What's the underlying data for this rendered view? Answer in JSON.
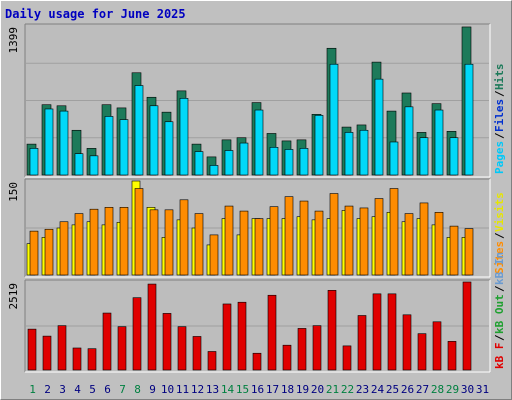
{
  "title": "Daily usage for June 2025",
  "colors": {
    "background": "#c0c0c0",
    "panel": "#bdbdbd",
    "hits": "#1d7a5a",
    "files": "#00d8f8",
    "pages": "#0030d0",
    "visits": "#ffff00",
    "sites": "#ff8c00",
    "kb_in": "#6b9bd0",
    "kb_out": "#1fa030",
    "kb_f": "#e00000",
    "weekend_label": "#008040",
    "weekday_label": "#000080"
  },
  "chart_data": [
    {
      "type": "bar",
      "panel": "hits-files-pages",
      "ytick_label": "1399",
      "ylim": [
        0,
        1399
      ],
      "legend": [
        {
          "label": "Pages",
          "color": "#00c8f8"
        },
        {
          "label": "/",
          "color": "#000000"
        },
        {
          "label": "Files",
          "color": "#0030d0"
        },
        {
          "label": "/",
          "color": "#000000"
        },
        {
          "label": "Hits",
          "color": "#1d7a5a"
        }
      ],
      "categories": [
        "1",
        "2",
        "3",
        "4",
        "5",
        "6",
        "7",
        "8",
        "9",
        "10",
        "11",
        "12",
        "13",
        "14",
        "15",
        "16",
        "17",
        "18",
        "19",
        "20",
        "21",
        "22",
        "23",
        "24",
        "25",
        "26",
        "27",
        "28",
        "29",
        "30",
        "31"
      ],
      "series": [
        {
          "name": "Hits",
          "values": [
            290,
            660,
            650,
            420,
            250,
            660,
            630,
            960,
            730,
            590,
            790,
            290,
            170,
            330,
            350,
            680,
            390,
            320,
            330,
            570,
            1190,
            450,
            470,
            1060,
            600,
            770,
            400,
            670,
            410,
            1390,
            null
          ]
        },
        {
          "name": "Files",
          "values": [
            250,
            620,
            600,
            200,
            180,
            550,
            520,
            840,
            650,
            500,
            720,
            220,
            90,
            230,
            300,
            610,
            260,
            240,
            250,
            560,
            1040,
            400,
            420,
            900,
            310,
            640,
            350,
            610,
            350,
            1040,
            null
          ]
        },
        {
          "name": "Pages",
          "values": [
            0,
            0,
            0,
            0,
            0,
            0,
            0,
            0,
            0,
            0,
            0,
            0,
            0,
            0,
            0,
            0,
            0,
            0,
            0,
            0,
            0,
            0,
            0,
            0,
            0,
            0,
            0,
            0,
            0,
            0,
            null
          ]
        }
      ]
    },
    {
      "type": "bar",
      "panel": "visits-sites",
      "ytick_label": "150",
      "ylim": [
        0,
        150
      ],
      "legend": [
        {
          "label": "Sites",
          "color": "#ff8c00"
        },
        {
          "label": "/",
          "color": "#000000"
        },
        {
          "label": "Visits",
          "color": "#e6e600"
        }
      ],
      "categories": [
        "1",
        "2",
        "3",
        "4",
        "5",
        "6",
        "7",
        "8",
        "9",
        "10",
        "11",
        "12",
        "13",
        "14",
        "15",
        "16",
        "17",
        "18",
        "19",
        "20",
        "21",
        "22",
        "23",
        "24",
        "25",
        "26",
        "27",
        "28",
        "29",
        "30",
        "31"
      ],
      "series": [
        {
          "name": "Visits",
          "values": [
            50,
            60,
            75,
            80,
            85,
            80,
            84,
            150,
            108,
            60,
            88,
            75,
            48,
            90,
            64,
            90,
            90,
            90,
            93,
            88,
            90,
            103,
            90,
            93,
            100,
            85,
            90,
            80,
            60,
            60,
            null
          ]
        },
        {
          "name": "Sites",
          "values": [
            70,
            73,
            85,
            98,
            105,
            108,
            108,
            138,
            104,
            104,
            120,
            98,
            64,
            110,
            102,
            90,
            109,
            125,
            118,
            102,
            130,
            110,
            107,
            122,
            138,
            98,
            115,
            100,
            78,
            74,
            null
          ]
        }
      ]
    },
    {
      "type": "bar",
      "panel": "kbytes",
      "ytick_label": "2519",
      "ylim": [
        0,
        2519
      ],
      "legend": [
        {
          "label": "kB F",
          "color": "#e00000"
        },
        {
          "label": "/",
          "color": "#000000"
        },
        {
          "label": "kB Out",
          "color": "#1fa030"
        },
        {
          "label": "/",
          "color": "#000000"
        },
        {
          "label": "kB In",
          "color": "#6b9bd0"
        }
      ],
      "categories": [
        "1",
        "2",
        "3",
        "4",
        "5",
        "6",
        "7",
        "8",
        "9",
        "10",
        "11",
        "12",
        "13",
        "14",
        "15",
        "16",
        "17",
        "18",
        "19",
        "20",
        "21",
        "22",
        "23",
        "24",
        "25",
        "26",
        "27",
        "28",
        "29",
        "30",
        "31"
      ],
      "series": [
        {
          "name": "kB F",
          "values": [
            1170,
            970,
            1270,
            630,
            610,
            1630,
            1240,
            2070,
            2460,
            1620,
            1240,
            960,
            530,
            1890,
            1940,
            480,
            2140,
            710,
            1190,
            1270,
            2280,
            690,
            1560,
            2180,
            2180,
            1580,
            1040,
            1380,
            820,
            2519,
            null
          ]
        }
      ]
    }
  ],
  "x_labels": [
    {
      "text": "1",
      "weekend": true
    },
    {
      "text": "2",
      "weekend": false
    },
    {
      "text": "3",
      "weekend": false
    },
    {
      "text": "4",
      "weekend": false
    },
    {
      "text": "5",
      "weekend": false
    },
    {
      "text": "6",
      "weekend": false
    },
    {
      "text": "7",
      "weekend": true
    },
    {
      "text": "8",
      "weekend": true
    },
    {
      "text": "9",
      "weekend": false
    },
    {
      "text": "10",
      "weekend": false
    },
    {
      "text": "11",
      "weekend": false
    },
    {
      "text": "12",
      "weekend": false
    },
    {
      "text": "13",
      "weekend": false
    },
    {
      "text": "14",
      "weekend": true
    },
    {
      "text": "15",
      "weekend": true
    },
    {
      "text": "16",
      "weekend": false
    },
    {
      "text": "17",
      "weekend": false
    },
    {
      "text": "18",
      "weekend": false
    },
    {
      "text": "19",
      "weekend": false
    },
    {
      "text": "20",
      "weekend": false
    },
    {
      "text": "21",
      "weekend": true
    },
    {
      "text": "22",
      "weekend": true
    },
    {
      "text": "23",
      "weekend": false
    },
    {
      "text": "24",
      "weekend": false
    },
    {
      "text": "25",
      "weekend": false
    },
    {
      "text": "26",
      "weekend": false
    },
    {
      "text": "27",
      "weekend": false
    },
    {
      "text": "28",
      "weekend": true
    },
    {
      "text": "29",
      "weekend": true
    },
    {
      "text": "30",
      "weekend": false
    },
    {
      "text": "31",
      "weekend": false
    }
  ]
}
